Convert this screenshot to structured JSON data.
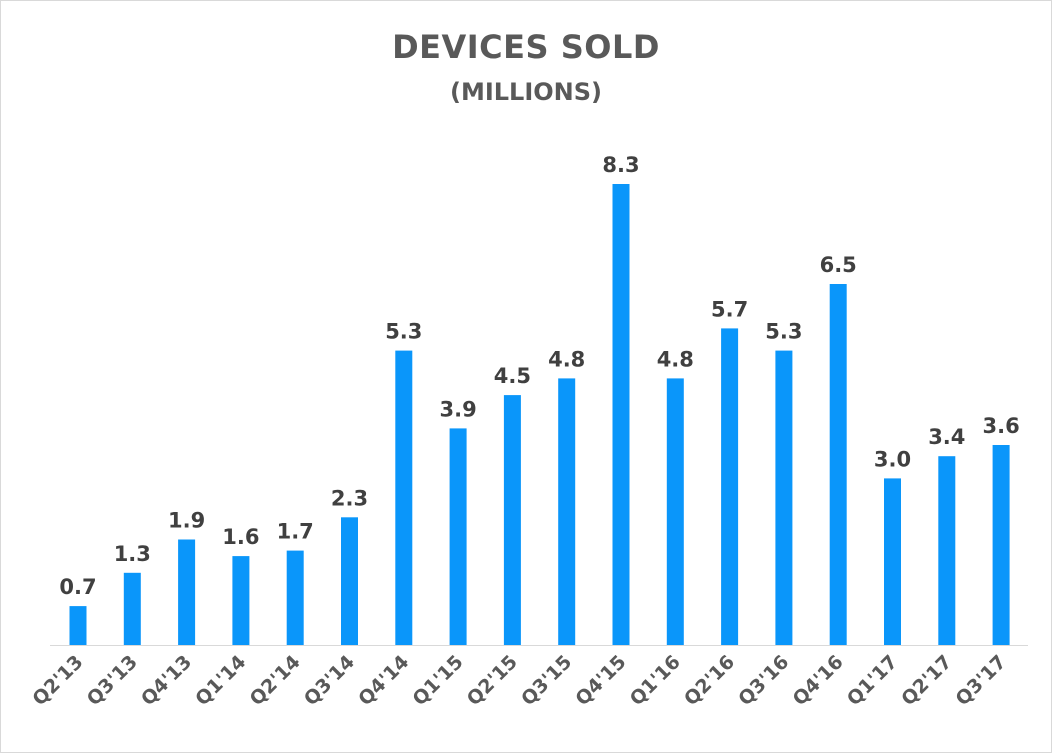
{
  "chart_data": {
    "type": "bar",
    "title": "DEVICES SOLD",
    "subtitle": "(MILLIONS)",
    "xlabel": "",
    "ylabel": "",
    "categories": [
      "Q2'13",
      "Q3'13",
      "Q4'13",
      "Q1'14",
      "Q2'14",
      "Q3'14",
      "Q4'14",
      "Q1'15",
      "Q2'15",
      "Q3'15",
      "Q4'15",
      "Q1'16",
      "Q2'16",
      "Q3'16",
      "Q4'16",
      "Q1'17",
      "Q2'17",
      "Q3'17"
    ],
    "values": [
      0.7,
      1.3,
      1.9,
      1.6,
      1.7,
      2.3,
      5.3,
      3.9,
      4.5,
      4.8,
      8.3,
      4.8,
      5.7,
      5.3,
      6.5,
      3.0,
      3.4,
      3.6
    ],
    "data_labels": [
      "0.7",
      "1.3",
      "1.9",
      "1.6",
      "1.7",
      "2.3",
      "5.3",
      "3.9",
      "4.5",
      "4.8",
      "8.3",
      "4.8",
      "5.7",
      "5.3",
      "6.5",
      "3.0",
      "3.4",
      "3.6"
    ],
    "ylim": [
      0,
      8.3
    ],
    "grid": false,
    "legend": "none",
    "bar_color": "#0a96fa",
    "axis_color": "#d9d9d9"
  }
}
